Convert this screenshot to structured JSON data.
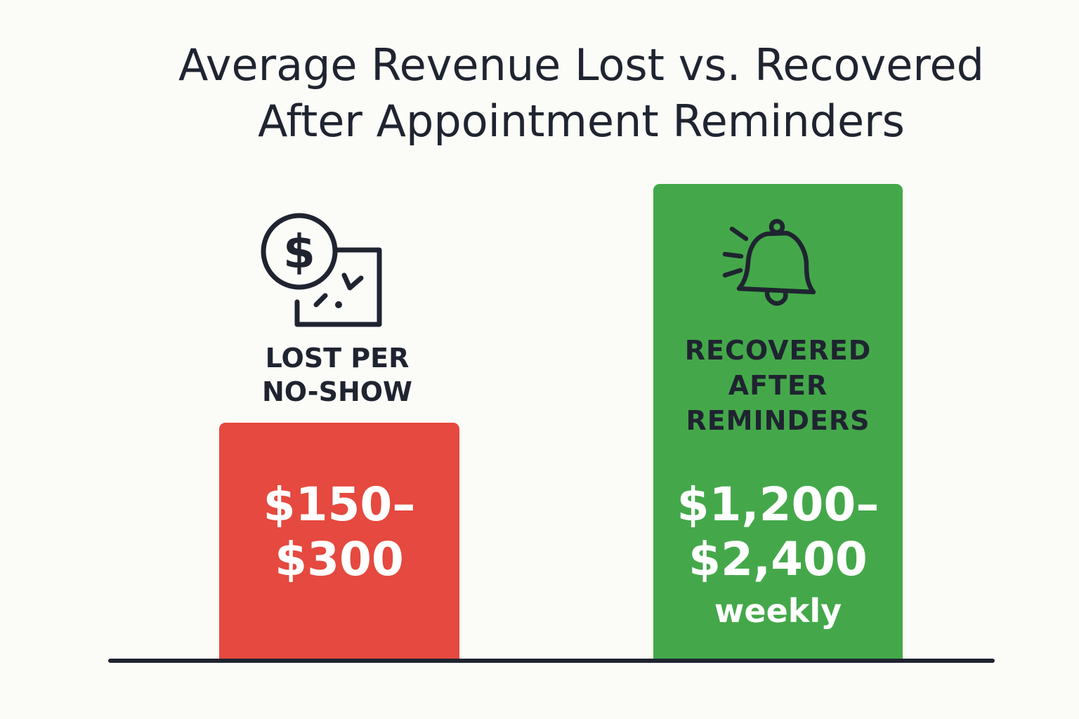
{
  "chart_data": {
    "type": "bar",
    "title": "Average Revenue Lost vs. Recovered After Appointment Reminders",
    "title_lines": [
      "Average Revenue Lost vs. Recovered",
      "After Appointment Reminders"
    ],
    "categories": [
      "LOST PER NO-SHOW",
      "RECOVERED AFTER REMINDERS"
    ],
    "category_lines": [
      [
        "LOST PER",
        "NO-SHOW"
      ],
      [
        "RECOVERED",
        "AFTER",
        "REMINDERS"
      ]
    ],
    "value_labels": [
      [
        "$150–",
        "$300"
      ],
      [
        "$1,200–",
        "$2,400",
        "weekly"
      ]
    ],
    "ranges": [
      [
        150,
        300
      ],
      [
        1200,
        2400
      ]
    ],
    "values": [
      300,
      2400
    ],
    "units": [
      "per no-show",
      "weekly"
    ],
    "xlabel": "",
    "ylabel": "",
    "grid": false,
    "colors": [
      "#e5493f",
      "#44a84a"
    ],
    "icons": [
      "dollar-document-icon",
      "bell-icon"
    ]
  },
  "colors": {
    "background": "#fbfbf8",
    "text": "#1f2430",
    "lost": "#e5493f",
    "recovered": "#44a84a"
  }
}
